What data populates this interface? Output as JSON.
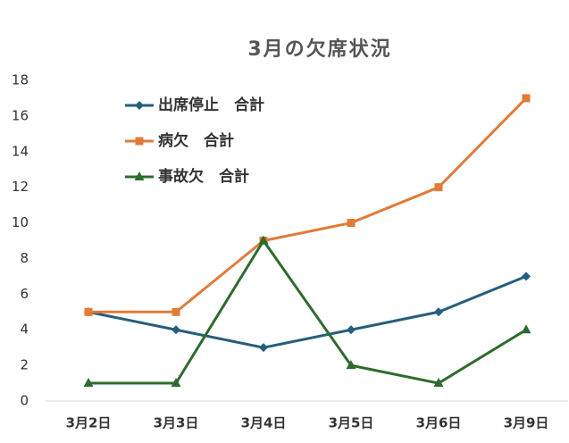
{
  "chart_data": {
    "type": "line",
    "title": "3月の欠席状況",
    "categories": [
      "3月2日",
      "3月3日",
      "3月4日",
      "3月5日",
      "3月6日",
      "3月9日"
    ],
    "series": [
      {
        "name": "出席停止　合計",
        "color": "#255e7e",
        "marker": "diamond",
        "values": [
          5,
          4,
          3,
          4,
          5,
          7
        ]
      },
      {
        "name": "病欠　合計",
        "color": "#e07b39",
        "marker": "square",
        "values": [
          5,
          5,
          9,
          10,
          12,
          17
        ]
      },
      {
        "name": "事故欠　合計",
        "color": "#2e6b2e",
        "marker": "triangle",
        "values": [
          1,
          1,
          9,
          2,
          1,
          4
        ]
      }
    ],
    "ylim": [
      0,
      18
    ],
    "yticks": [
      0,
      2,
      4,
      6,
      8,
      10,
      12,
      14,
      16,
      18
    ],
    "grid": false,
    "legend": "top-left"
  }
}
